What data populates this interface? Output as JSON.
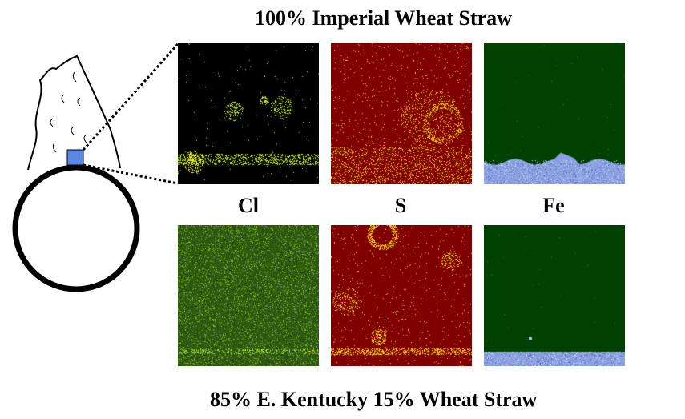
{
  "top_title": "100% Imperial Wheat Straw",
  "bottom_title": "85% E. Kentucky  15% Wheat Straw",
  "elements": [
    "Cl",
    "S",
    "Fe"
  ],
  "colors": {
    "cl_background": "#000000",
    "cl_background_bottom": "#2f5a12",
    "cl_dots": "#c8f000",
    "s_background": "#800000",
    "s_dots": "#f0c800",
    "fe_background": "#004000",
    "fe_deposit": "#8aa0e0",
    "probe_marker": "#5a87e8"
  }
}
